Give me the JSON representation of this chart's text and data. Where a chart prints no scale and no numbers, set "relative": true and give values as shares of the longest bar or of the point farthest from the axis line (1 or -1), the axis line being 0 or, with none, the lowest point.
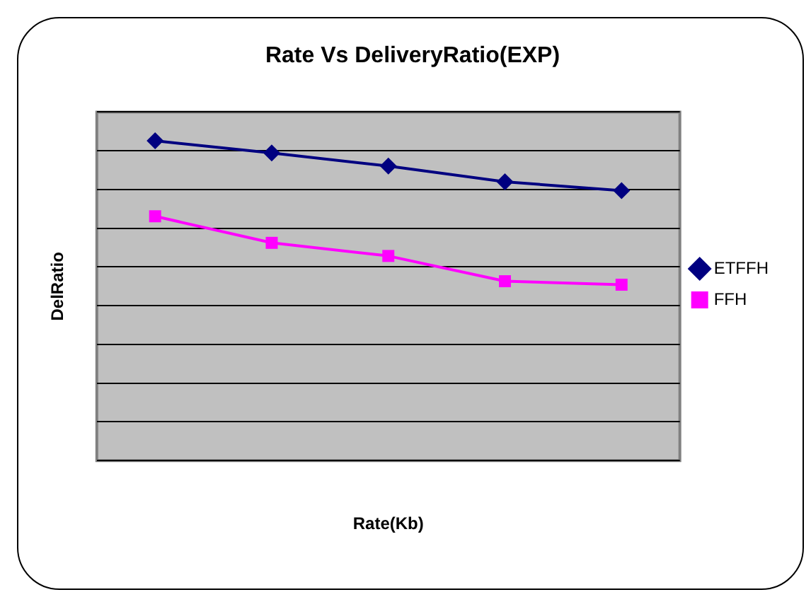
{
  "chart_data": {
    "type": "line",
    "title": "Rate Vs DeliveryRatio(EXP)",
    "xlabel": "Rate(Kb)",
    "ylabel": "DelRatio",
    "relative": true,
    "categories": [
      null,
      null,
      null,
      null,
      null
    ],
    "grid": "y",
    "legend": "right",
    "series": [
      {
        "name": "ETFFH",
        "color": "#000080",
        "marker": "diamond",
        "values": [
          1,
          0.962,
          0.921,
          0.872,
          0.844
        ]
      },
      {
        "name": "FFH",
        "color": "#ff00ff",
        "marker": "square",
        "values": [
          0.764,
          0.681,
          0.64,
          0.561,
          0.55
        ]
      }
    ]
  }
}
